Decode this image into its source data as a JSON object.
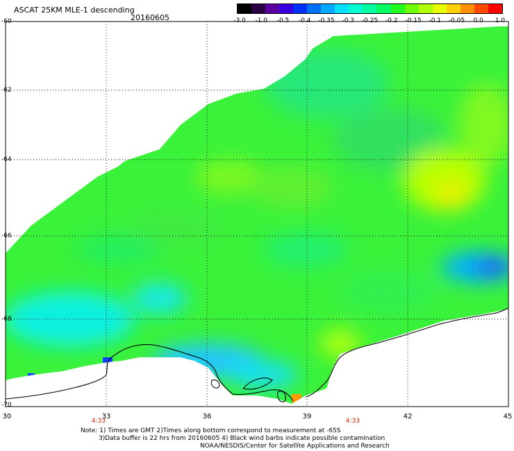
{
  "header": {
    "title": "ASCAT 25KM MLE-1 descending",
    "date": "20160605"
  },
  "colorbar": {
    "labels": [
      "-3.0",
      "-1.0",
      "-0.5",
      "-0.4",
      "-0.35",
      "-0.3",
      "-0.25",
      "-0.2",
      "-0.15",
      "-0.1",
      "-0.05",
      "0.0",
      "1.0"
    ],
    "colors": [
      "#000000",
      "#2a0040",
      "#5a00a0",
      "#3800e0",
      "#0030ff",
      "#0070ff",
      "#00a8ff",
      "#00e0ff",
      "#00ffd0",
      "#00ffa0",
      "#00ff60",
      "#20ff20",
      "#70ff00",
      "#b0ff00",
      "#e8ff00",
      "#ffd000",
      "#ff9000",
      "#ff4800",
      "#ff0000"
    ]
  },
  "axes": {
    "lat_labels": [
      "-60",
      "-62",
      "-64",
      "-66",
      "-68",
      "-70"
    ],
    "lon_labels": [
      "30",
      "33",
      "36",
      "39",
      "42",
      "45"
    ],
    "times": [
      "4:33",
      "4:33"
    ]
  },
  "notes": {
    "line1": "Note: 1) Times are GMT 2)Times along bottom correspond to measurement at -65S",
    "line2": "3)Data buffer is 22 hrs from 20160605 4) Black wind barbs indicate possible contamination",
    "line3": "NOAA/NESDIS/Center for Satellite Applications and Research"
  }
}
